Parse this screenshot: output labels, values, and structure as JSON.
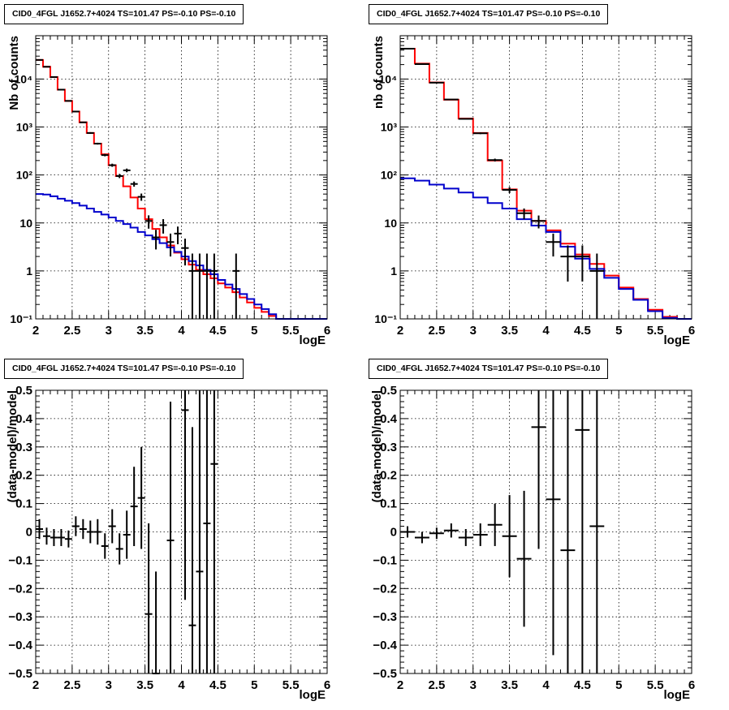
{
  "charts": [
    {
      "title": "CID0_4FGL J1652.7+4024 TS=101.47 PS=-0.10 PS=-0.10",
      "xlabel": "logE",
      "ylabel": "Nb of counts",
      "ytick_labels": [
        "10⁻¹",
        "1",
        "10",
        "10²",
        "10³",
        "10⁴"
      ]
    },
    {
      "title": "CID0_4FGL J1652.7+4024 TS=101.47 PS=-0.10 PS=-0.10",
      "xlabel": "logE",
      "ylabel": "nb of counts",
      "ytick_labels": [
        "10⁻¹",
        "1",
        "10",
        "10²",
        "10³",
        "10⁴"
      ]
    },
    {
      "title": "CID0_4FGL J1652.7+4024 TS=101.47 PS=-0.10 PS=-0.10",
      "xlabel": "logE",
      "ylabel": "(data-model)/model",
      "ytick_labels": [
        "−0.5",
        "−0.4",
        "−0.3",
        "−0.2",
        "−0.1",
        "0",
        "0.1",
        "0.2",
        "0.3",
        "0.4",
        "0.5"
      ]
    },
    {
      "title": "CID0_4FGL J1652.7+4024 TS=101.47 PS=-0.10 PS=-0.10",
      "xlabel": "logE",
      "ylabel": "(data-model)/model",
      "ytick_labels": [
        "−0.5",
        "−0.4",
        "−0.3",
        "−0.2",
        "−0.1",
        "0",
        "0.1",
        "0.2",
        "0.3",
        "0.4",
        "0.5"
      ]
    }
  ],
  "chart_data": [
    {
      "type": "line",
      "title": "CID0_4FGL J1652.7+4024 TS=101.47 PS=-0.10 PS=-0.10",
      "xlabel": "logE",
      "ylabel": "Nb of counts",
      "xlim": [
        2,
        6
      ],
      "ylim": [
        0.1,
        80000
      ],
      "yscale": "log",
      "grid": true,
      "xticks": [
        "2",
        "2.5",
        "3",
        "3.5",
        "4",
        "4.5",
        "5",
        "5.5",
        "6"
      ],
      "bin_edges": [
        2.0,
        2.1,
        2.2,
        2.3,
        2.4,
        2.5,
        2.6,
        2.7,
        2.8,
        2.9,
        3.0,
        3.1,
        3.2,
        3.3,
        3.4,
        3.5,
        3.6,
        3.7,
        3.8,
        3.9,
        4.0,
        4.1,
        4.2,
        4.3,
        4.4,
        4.5,
        4.6,
        4.7,
        4.8,
        4.9,
        5.0,
        5.1,
        5.2,
        5.3,
        5.4,
        5.5,
        5.6,
        5.7,
        5.8,
        5.9,
        6.0
      ],
      "series": [
        {
          "style": "histogram",
          "color": "#ff0000",
          "values": [
            25000,
            18000,
            11000,
            6000,
            3500,
            2100,
            1250,
            750,
            450,
            270,
            160,
            95,
            58,
            34,
            20,
            12,
            7.5,
            5.0,
            3.4,
            2.4,
            1.75,
            1.35,
            1.05,
            0.85,
            0.7,
            0.55,
            0.45,
            0.36,
            0.28,
            0.22,
            0.17,
            0.14,
            0.115,
            0.1,
            0.1,
            0.1,
            0.1,
            0.1,
            0.1,
            0.1
          ]
        },
        {
          "style": "histogram",
          "color": "#0000cc",
          "values": [
            40,
            39,
            36,
            32,
            29,
            26,
            23,
            20,
            17,
            15,
            13,
            11,
            9.5,
            8.0,
            6.5,
            5.5,
            4.6,
            3.8,
            3.1,
            2.5,
            2.0,
            1.6,
            1.3,
            1.05,
            0.85,
            0.65,
            0.52,
            0.42,
            0.33,
            0.26,
            0.2,
            0.16,
            0.125,
            0.1,
            0.1,
            0.1,
            0.1,
            0.1,
            0.1,
            0.1
          ]
        },
        {
          "style": "errorbar",
          "color": "#000000",
          "x": [
            2.05,
            2.15,
            2.25,
            2.35,
            2.45,
            2.55,
            2.65,
            2.75,
            2.85,
            2.95,
            3.05,
            3.15,
            3.25,
            3.35,
            3.45,
            3.55,
            3.65,
            3.75,
            3.85,
            3.95,
            4.05,
            4.15,
            4.25,
            4.35,
            4.45,
            4.75
          ],
          "y": [
            25000,
            18000,
            11000,
            6000,
            3500,
            2100,
            1250,
            750,
            450,
            260,
            160,
            95,
            125,
            65,
            35,
            11,
            5,
            9,
            4,
            6,
            3,
            1,
            1,
            1,
            1,
            1
          ],
          "xerr": 0.05,
          "ylo": [
            24800,
            17800,
            10800,
            5900,
            3400,
            2050,
            1220,
            720,
            430,
            245,
            148,
            86,
            114,
            57,
            29,
            7.6,
            2.8,
            6,
            2,
            3.6,
            1.3,
            0.1,
            0.1,
            0.1,
            0.1,
            0.1
          ],
          "yhi": [
            25200,
            18200,
            11200,
            6100,
            3600,
            2150,
            1280,
            780,
            470,
            275,
            172,
            105,
            136,
            73,
            41,
            14.4,
            7.2,
            12,
            6,
            8.4,
            4.7,
            2.3,
            2.3,
            2.3,
            2.3,
            2.3
          ]
        }
      ]
    },
    {
      "type": "line",
      "title": "CID0_4FGL J1652.7+4024 TS=101.47 PS=-0.10 PS=-0.10",
      "xlabel": "logE",
      "ylabel": "nb of counts",
      "xlim": [
        2,
        6
      ],
      "ylim": [
        0.1,
        80000
      ],
      "yscale": "log",
      "grid": true,
      "xticks": [
        "2",
        "2.5",
        "3",
        "3.5",
        "4",
        "4.5",
        "5",
        "5.5",
        "6"
      ],
      "bin_edges": [
        2.0,
        2.2,
        2.4,
        2.6,
        2.8,
        3.0,
        3.2,
        3.4,
        3.6,
        3.8,
        4.0,
        4.2,
        4.4,
        4.6,
        4.8,
        5.0,
        5.2,
        5.4,
        5.6,
        5.8,
        6.0
      ],
      "series": [
        {
          "style": "histogram",
          "color": "#ff0000",
          "values": [
            43000,
            21000,
            8500,
            3700,
            1500,
            750,
            200,
            50,
            18,
            11,
            7,
            3.7,
            2.2,
            1.4,
            0.8,
            0.45,
            0.26,
            0.155,
            0.11,
            0.1
          ]
        },
        {
          "style": "histogram",
          "color": "#0000cc",
          "values": [
            85,
            76,
            63,
            52,
            43,
            34,
            26,
            20,
            12,
            8.8,
            6.5,
            3.2,
            1.8,
            1.1,
            0.72,
            0.42,
            0.25,
            0.145,
            0.105,
            0.1
          ]
        },
        {
          "style": "errorbar",
          "color": "#000000",
          "x": [
            2.1,
            2.3,
            2.5,
            2.7,
            2.9,
            3.1,
            3.3,
            3.5,
            3.7,
            3.9,
            4.1,
            4.3,
            4.5,
            4.7
          ],
          "y": [
            43000,
            20500,
            8400,
            3750,
            1480,
            740,
            205,
            49,
            16,
            11,
            4,
            2,
            2,
            1
          ],
          "xerr": 0.1,
          "ylo": [
            42800,
            20300,
            8300,
            3680,
            1440,
            710,
            191,
            42,
            12,
            7.7,
            2,
            0.6,
            0.6,
            0.1
          ],
          "yhi": [
            43200,
            20700,
            8500,
            3820,
            1520,
            770,
            219,
            56,
            20,
            14.3,
            6,
            3.4,
            3.4,
            2.3
          ]
        }
      ]
    },
    {
      "type": "scatter",
      "title": "CID0_4FGL J1652.7+4024 TS=101.47 PS=-0.10 PS=-0.10",
      "xlabel": "logE",
      "ylabel": "(data-model)/model",
      "xlim": [
        2,
        6
      ],
      "ylim": [
        -0.5,
        0.5
      ],
      "grid": true,
      "xticks": [
        "2",
        "2.5",
        "3",
        "3.5",
        "4",
        "4.5",
        "5",
        "5.5",
        "6"
      ],
      "yticks": [
        -0.5,
        -0.4,
        -0.3,
        -0.2,
        -0.1,
        0,
        0.1,
        0.2,
        0.3,
        0.4,
        0.5
      ],
      "x": [
        2.05,
        2.15,
        2.25,
        2.35,
        2.45,
        2.55,
        2.65,
        2.75,
        2.85,
        2.95,
        3.05,
        3.15,
        3.25,
        3.35,
        3.45,
        3.55,
        3.65,
        3.85,
        4.05,
        4.15,
        4.25,
        4.35,
        4.45
      ],
      "y": [
        0.01,
        -0.015,
        -0.02,
        -0.02,
        -0.025,
        0.02,
        0.01,
        0.0,
        0.0,
        -0.05,
        0.02,
        -0.06,
        -0.01,
        0.09,
        0.12,
        -0.29,
        -0.5,
        -0.03,
        0.43,
        -0.33,
        -0.14,
        0.03,
        0.24
      ],
      "xerr": 0.05,
      "yerr": [
        0.035,
        0.03,
        0.03,
        0.03,
        0.03,
        0.035,
        0.035,
        0.04,
        0.045,
        0.045,
        0.06,
        0.055,
        0.085,
        0.14,
        0.18,
        0.32,
        0.36,
        0.49,
        0.67,
        0.7,
        0.8,
        0.9,
        1.0
      ]
    },
    {
      "type": "scatter",
      "title": "CID0_4FGL J1652.7+4024 TS=101.47 PS=-0.10 PS=-0.10",
      "xlabel": "logE",
      "ylabel": "(data-model)/model",
      "xlim": [
        2,
        6
      ],
      "ylim": [
        -0.5,
        0.5
      ],
      "grid": true,
      "xticks": [
        "2",
        "2.5",
        "3",
        "3.5",
        "4",
        "4.5",
        "5",
        "5.5",
        "6"
      ],
      "yticks": [
        -0.5,
        -0.4,
        -0.3,
        -0.2,
        -0.1,
        0,
        0.1,
        0.2,
        0.3,
        0.4,
        0.5
      ],
      "x": [
        2.1,
        2.3,
        2.5,
        2.7,
        2.9,
        3.1,
        3.3,
        3.5,
        3.7,
        3.9,
        4.1,
        4.3,
        4.5,
        4.7
      ],
      "y": [
        0.0,
        -0.02,
        -0.005,
        0.005,
        -0.02,
        -0.01,
        0.025,
        -0.015,
        -0.095,
        0.37,
        0.115,
        -0.065,
        0.36,
        0.02
      ],
      "xerr": 0.1,
      "yerr": [
        0.02,
        0.02,
        0.02,
        0.025,
        0.03,
        0.04,
        0.075,
        0.145,
        0.24,
        0.43,
        0.55,
        0.7,
        0.95,
        1.0
      ]
    }
  ]
}
